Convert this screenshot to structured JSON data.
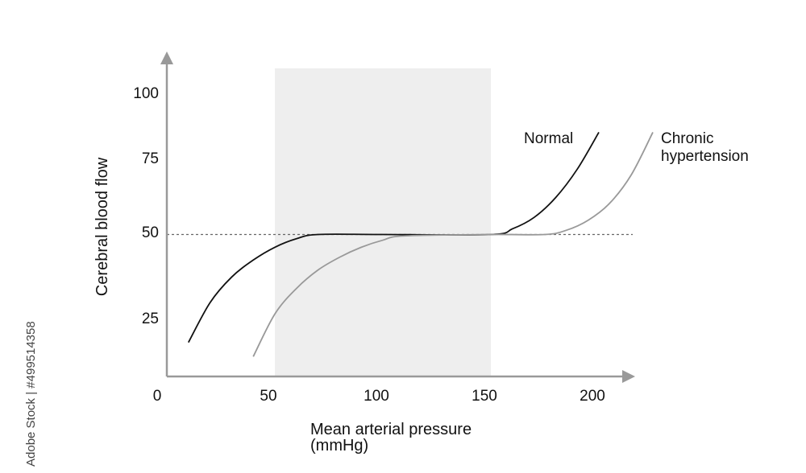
{
  "chart_data": {
    "type": "line",
    "xlabel": [
      "Mean arterial pressure",
      "(mmHg)"
    ],
    "ylabel": "Cerebral blood flow",
    "xlim": [
      0,
      220
    ],
    "ylim": [
      0,
      110
    ],
    "x_ticks": [
      0,
      50,
      100,
      150,
      200
    ],
    "y_ticks": [
      25,
      50,
      75,
      100
    ],
    "x_tick_labels": [
      "0",
      "50",
      "100",
      "150",
      "200"
    ],
    "y_tick_labels": [
      "25",
      "50",
      "75",
      "100"
    ],
    "shaded_region": {
      "x": [
        50,
        150
      ],
      "color": "#eeeeee"
    },
    "reference_line": {
      "y": 50,
      "style": "dotted"
    },
    "series": [
      {
        "name": "Normal",
        "label_lines": [
          "Normal"
        ],
        "color": "#111111",
        "x": [
          10,
          20,
          30,
          40,
          50,
          60,
          70,
          100,
          150,
          160,
          170,
          180,
          190,
          200
        ],
        "y": [
          12,
          26,
          35,
          41,
          45.5,
          48.5,
          50,
          50,
          50,
          52,
          56,
          63,
          73,
          86
        ]
      },
      {
        "name": "Chronic hypertension",
        "label_lines": [
          "Chronic",
          "hypertension"
        ],
        "color": "#999999",
        "x": [
          40,
          50,
          60,
          70,
          80,
          90,
          100,
          110,
          150,
          175,
          185,
          195,
          205,
          215,
          225
        ],
        "y": [
          7,
          22,
          31,
          37.5,
          42,
          45.5,
          48,
          49.5,
          50,
          50,
          51.5,
          55,
          61,
          71,
          86
        ]
      }
    ],
    "watermark": "Adobe Stock | #499514358"
  }
}
